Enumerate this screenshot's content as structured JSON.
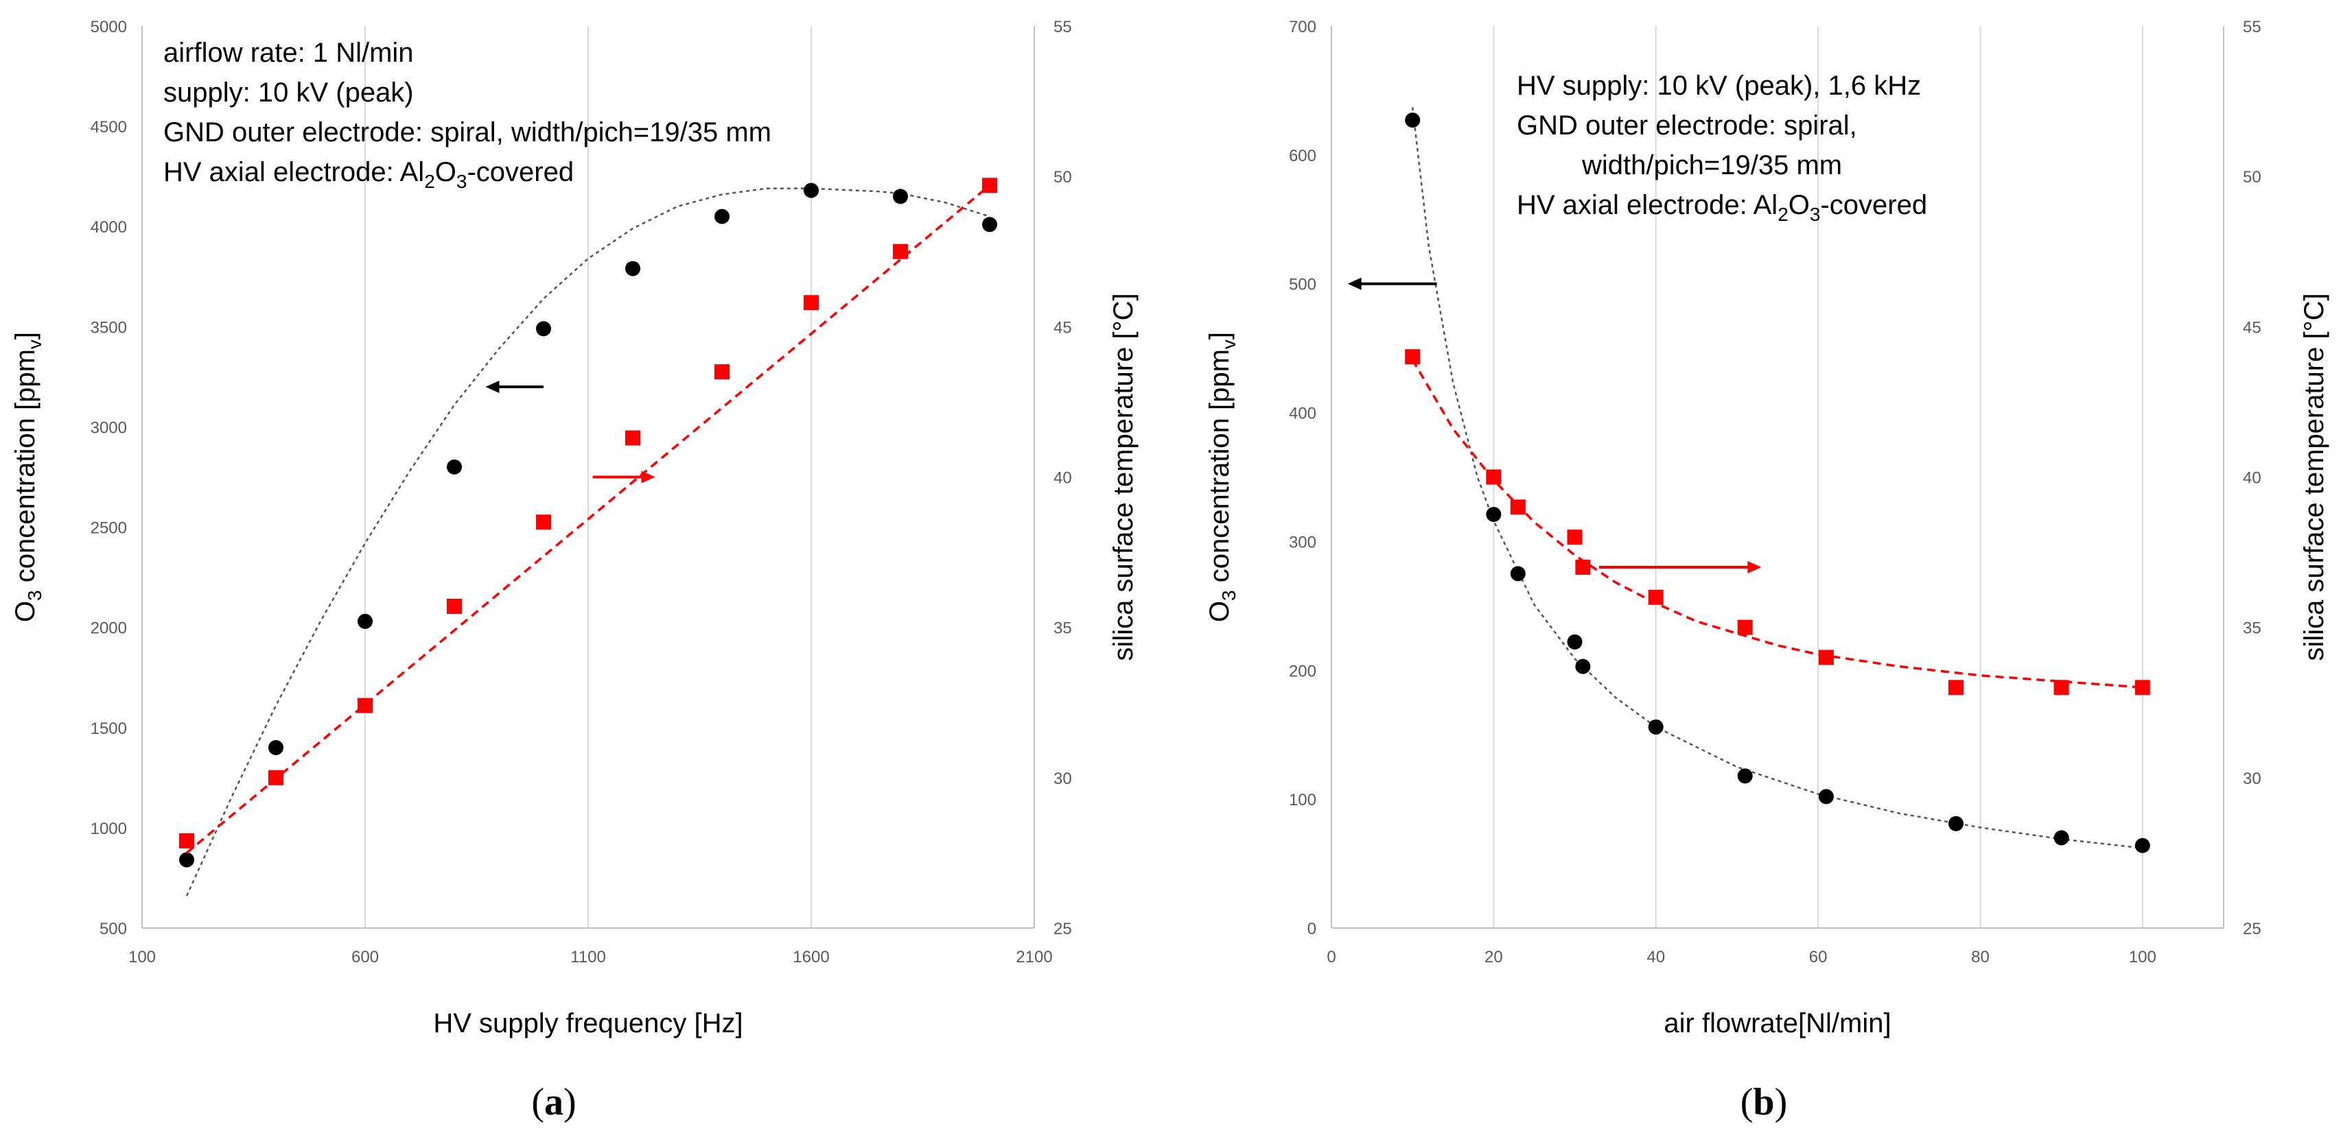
{
  "chart_data": [
    {
      "panel_label": "a",
      "type": "scatter",
      "xlabel": "HV supply frequency [Hz]",
      "xlim": [
        100,
        2100
      ],
      "x_ticks": [
        "100",
        "600",
        "1100",
        "1600",
        "2100"
      ],
      "ylabel": {
        "pre": "O",
        "sub": "3",
        "mid": " concentration [ppm",
        "sub2": "v",
        "post": "]"
      },
      "ylim": [
        500,
        5000
      ],
      "y_ticks": [
        "500",
        "1000",
        "1500",
        "2000",
        "2500",
        "3000",
        "3500",
        "4000",
        "4500",
        "5000"
      ],
      "y2label": "silica surface temperature [°C]",
      "y2lim": [
        25,
        55
      ],
      "y2_ticks": [
        "25",
        "30",
        "35",
        "40",
        "45",
        "50",
        "55"
      ],
      "grid": "vertical",
      "annotations": [
        {
          "parts": [
            {
              "t": "airflow rate: 1 Nl/min"
            }
          ]
        },
        {
          "parts": [
            {
              "t": "supply: 10 kV (peak)"
            }
          ]
        },
        {
          "parts": [
            {
              "t": "GND outer electrode: spiral, width/pich=19/35 mm"
            }
          ]
        },
        {
          "parts": [
            {
              "t": "HV axial electrode: Al"
            },
            {
              "t": "2",
              "sub": true
            },
            {
              "t": "O"
            },
            {
              "t": "3",
              "sub": true
            },
            {
              "t": "-covered"
            }
          ]
        }
      ],
      "series": [
        {
          "marker": "circle",
          "color": "#000000",
          "axis": "left",
          "trend": "polynomial",
          "x": [
            200,
            400,
            600,
            800,
            1000,
            1200,
            1400,
            1600,
            1800,
            2000
          ],
          "y": [
            840,
            1400,
            2030,
            2800,
            3490,
            3790,
            4050,
            4180,
            4150,
            4010
          ],
          "trend_x": [
            200,
            300,
            400,
            500,
            600,
            700,
            800,
            900,
            1000,
            1100,
            1200,
            1300,
            1400,
            1500,
            1600,
            1700,
            1750,
            1800,
            1900,
            2000
          ],
          "trend_y": [
            660,
            1150,
            1610,
            2030,
            2420,
            2780,
            3110,
            3390,
            3640,
            3840,
            3990,
            4100,
            4160,
            4190,
            4190,
            4180,
            4175,
            4165,
            4120,
            4050
          ]
        },
        {
          "marker": "square",
          "color": "#ff0000",
          "axis": "right",
          "trend": "linear",
          "x": [
            200,
            400,
            600,
            800,
            1000,
            1200,
            1400,
            1600,
            1800,
            2000
          ],
          "y": [
            27.9,
            30.0,
            32.4,
            35.7,
            38.5,
            41.3,
            43.5,
            45.8,
            47.5,
            49.7
          ],
          "trend_x": [
            200,
            2000
          ],
          "trend_y": [
            27.5,
            49.7
          ]
        }
      ],
      "arrows": [
        {
          "direction": "left",
          "color": "#000000",
          "x_from": 1000,
          "x_to": 870,
          "y": 3200,
          "axis": "left"
        },
        {
          "direction": "right",
          "color": "#ff0000",
          "x_from": 1110,
          "x_to": 1250,
          "y": 40,
          "axis": "right"
        }
      ]
    },
    {
      "panel_label": "b",
      "type": "scatter",
      "xlabel": "air flowrate[Nl/min]",
      "xlim": [
        0,
        110
      ],
      "x_ticks": [
        "0",
        "20",
        "40",
        "60",
        "80",
        "100"
      ],
      "x_tick_values": [
        0,
        20,
        40,
        60,
        80,
        100
      ],
      "ylabel": {
        "pre": "O",
        "sub": "3",
        "mid": " concentration [ppm",
        "sub2": "v",
        "post": "]"
      },
      "ylim": [
        0,
        700
      ],
      "y_ticks": [
        "0",
        "100",
        "200",
        "300",
        "400",
        "500",
        "600",
        "700"
      ],
      "y2label": "silica surface temperature [°C]",
      "y2lim": [
        25,
        55
      ],
      "y2_ticks": [
        "25",
        "30",
        "35",
        "40",
        "45",
        "50",
        "55"
      ],
      "grid": "vertical",
      "annotations": [
        {
          "parts": [
            {
              "t": "HV supply: 10 kV (peak), 1,6 kHz"
            }
          ]
        },
        {
          "parts": [
            {
              "t": "GND outer electrode: spiral,"
            }
          ]
        },
        {
          "indent": true,
          "parts": [
            {
              "t": "width/pich=19/35 mm"
            }
          ]
        },
        {
          "parts": [
            {
              "t": "HV axial electrode: Al"
            },
            {
              "t": "2",
              "sub": true
            },
            {
              "t": "O"
            },
            {
              "t": "3",
              "sub": true
            },
            {
              "t": "-covered"
            }
          ]
        }
      ],
      "series": [
        {
          "marker": "circle",
          "color": "#000000",
          "axis": "left",
          "trend": "power",
          "x": [
            10,
            20,
            23,
            30,
            31,
            40,
            51,
            61,
            77,
            90,
            100
          ],
          "y": [
            627,
            321,
            275,
            222,
            203,
            156,
            118,
            102,
            81,
            70,
            64
          ],
          "trend_x": [
            10,
            12,
            15,
            18,
            20,
            25,
            30,
            35,
            40,
            50,
            60,
            70,
            80,
            90,
            100
          ],
          "trend_y": [
            637,
            529,
            423,
            350,
            316,
            251,
            209,
            179,
            156,
            125,
            104,
            89,
            78,
            69,
            62
          ]
        },
        {
          "marker": "square",
          "color": "#ff0000",
          "axis": "right",
          "trend": "exponential",
          "x": [
            10,
            20,
            23,
            30,
            31,
            40,
            51,
            61,
            77,
            90,
            100
          ],
          "y": [
            44.0,
            40.0,
            39.0,
            38.0,
            37.0,
            36.0,
            35.0,
            34.0,
            33.0,
            33.0,
            33.0
          ],
          "trend_x": [
            10,
            15,
            20,
            25,
            30,
            35,
            40,
            45,
            50,
            55,
            60,
            70,
            80,
            90,
            100
          ],
          "trend_y": [
            43.9,
            41.6,
            39.9,
            38.5,
            37.4,
            36.5,
            35.8,
            35.2,
            34.8,
            34.4,
            34.1,
            33.7,
            33.4,
            33.2,
            33.0
          ]
        }
      ],
      "arrows": [
        {
          "direction": "left",
          "color": "#000000",
          "x_from": 13,
          "x_to": 2,
          "y": 500,
          "axis": "left"
        },
        {
          "direction": "right",
          "color": "#ff0000",
          "x_from": 33,
          "x_to": 53,
          "y": 37,
          "axis": "right"
        }
      ]
    }
  ]
}
